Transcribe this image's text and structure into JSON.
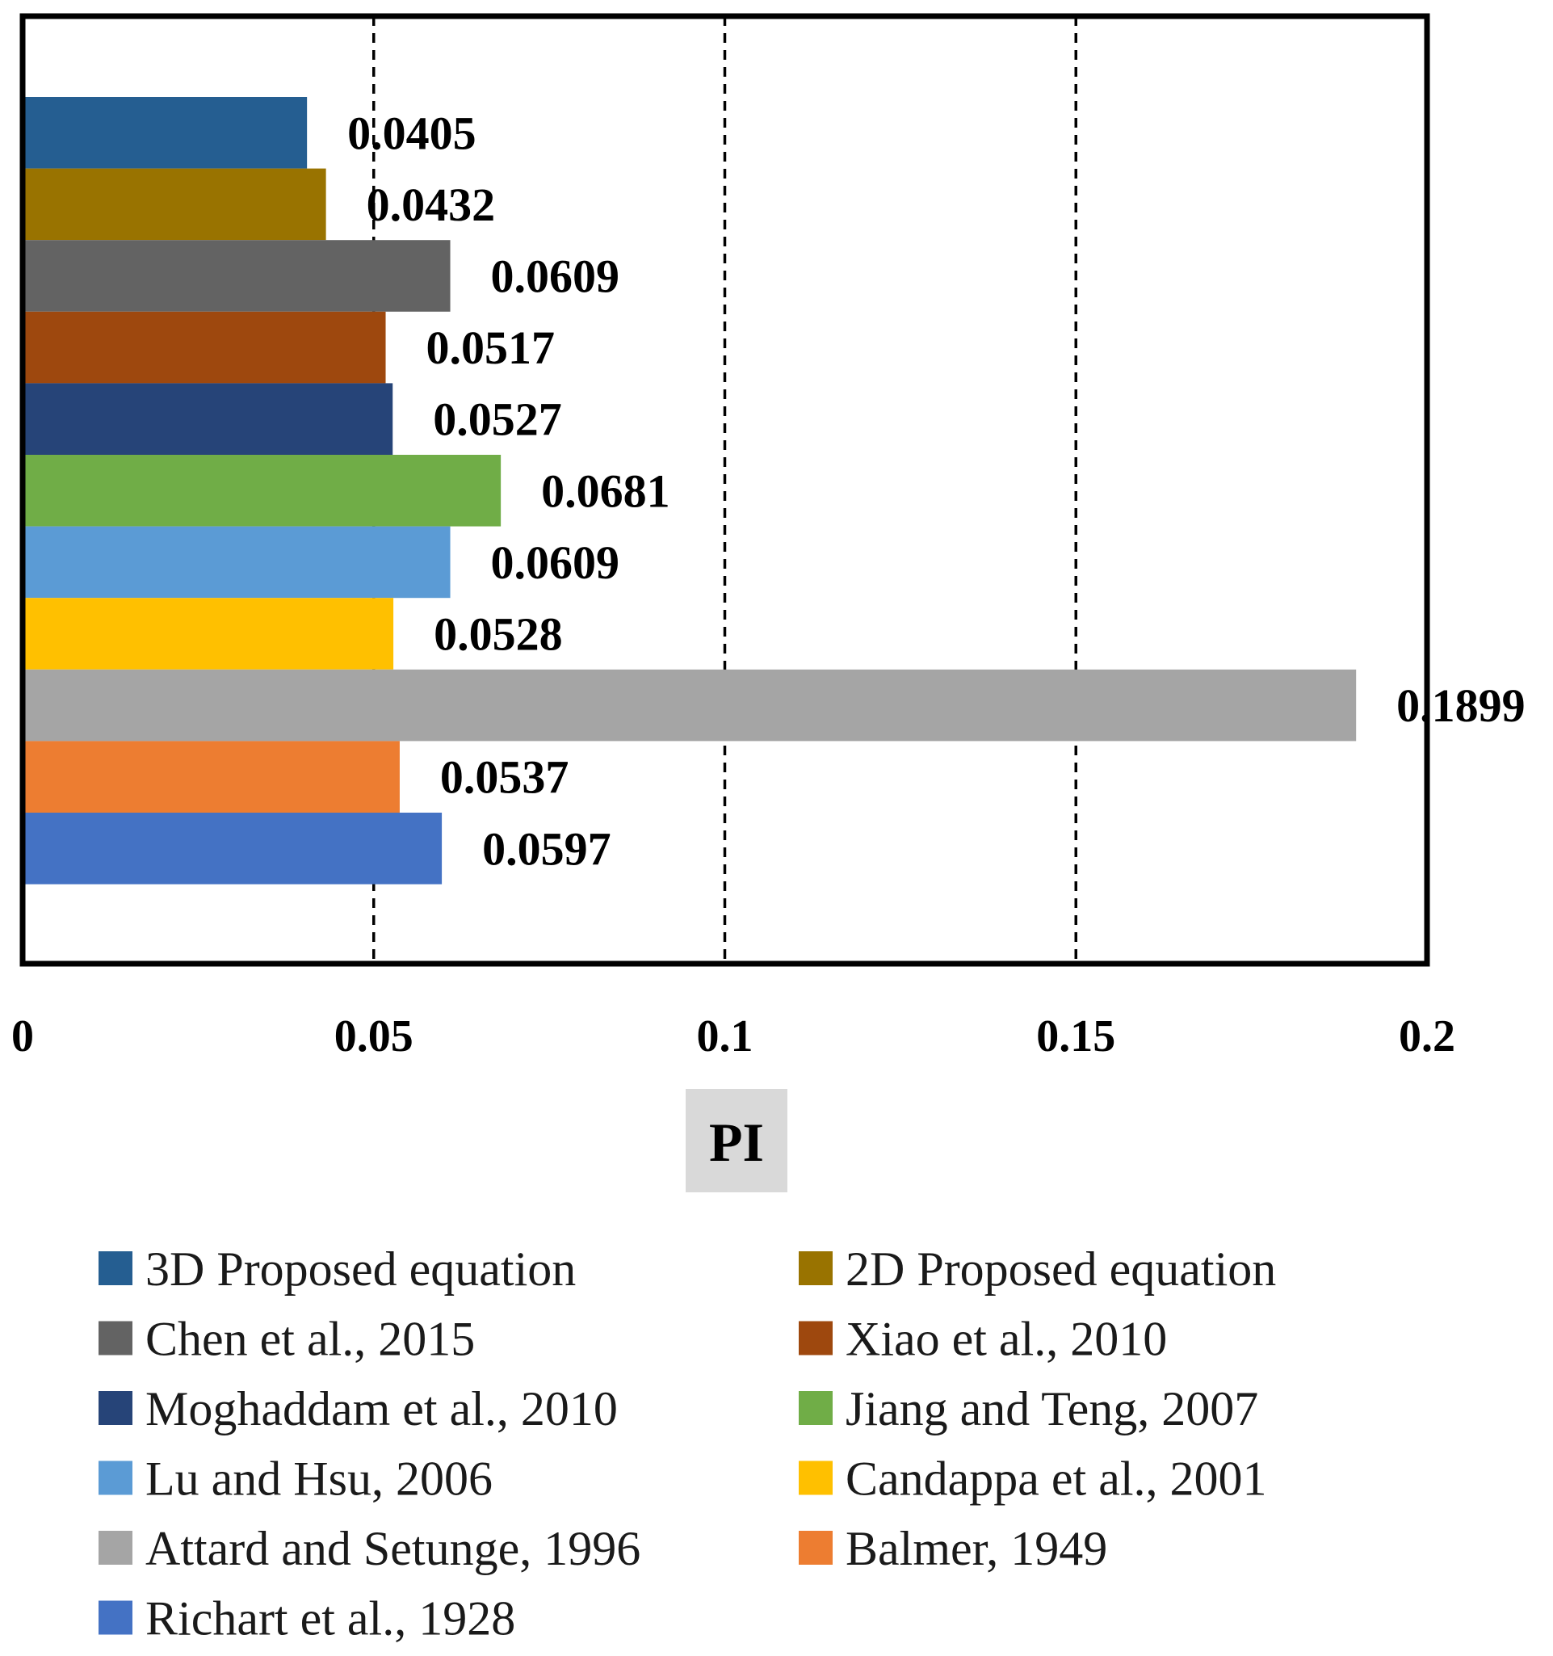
{
  "chart_data": {
    "type": "bar",
    "orientation": "horizontal",
    "title": "",
    "xlabel": "PI",
    "ylabel": "",
    "xlim": [
      0,
      0.2
    ],
    "x_ticks": [
      0,
      0.05,
      0.1,
      0.15,
      0.2
    ],
    "x_tick_labels": [
      "0",
      "0.05",
      "0.1",
      "0.15",
      "0.2"
    ],
    "grid": "vertical dashed",
    "legend_position": "bottom",
    "series": [
      {
        "name": "3D Proposed equation",
        "value": 0.0405,
        "label": "0.0405",
        "color": "#255E91"
      },
      {
        "name": "2D Proposed equation",
        "value": 0.0432,
        "label": "0.0432",
        "color": "#997300"
      },
      {
        "name": "Chen et al., 2015",
        "value": 0.0609,
        "label": "0.0609",
        "color": "#636363"
      },
      {
        "name": "Xiao et al., 2010",
        "value": 0.0517,
        "label": "0.0517",
        "color": "#9E480E"
      },
      {
        "name": "Moghaddam et al., 2010",
        "value": 0.0527,
        "label": "0.0527",
        "color": "#264478"
      },
      {
        "name": "Jiang and Teng, 2007",
        "value": 0.0681,
        "label": "0.0681",
        "color": "#70AD47"
      },
      {
        "name": "Lu and Hsu, 2006",
        "value": 0.0609,
        "label": "0.0609",
        "color": "#5B9BD5"
      },
      {
        "name": "Candappa et al., 2001",
        "value": 0.0528,
        "label": "0.0528",
        "color": "#FFC000"
      },
      {
        "name": "Attard and Setunge, 1996",
        "value": 0.1899,
        "label": "0.1899",
        "color": "#A5A5A5"
      },
      {
        "name": "Balmer, 1949",
        "value": 0.0537,
        "label": "0.0537",
        "color": "#ED7D31"
      },
      {
        "name": "Richart et al., 1928",
        "value": 0.0597,
        "label": "0.0597",
        "color": "#4472C4"
      }
    ]
  },
  "colors": {
    "frame": "#000000",
    "axis_title_background": "#D9D9D9"
  }
}
